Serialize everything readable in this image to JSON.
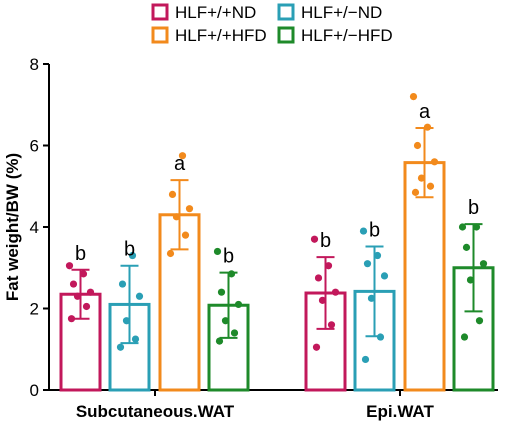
{
  "chart_data": {
    "type": "bar",
    "title": "",
    "xlabel": "",
    "ylabel": "Fat weight/BW (%)",
    "ylim": [
      0,
      8
    ],
    "yticks": [
      "0",
      "2",
      "4",
      "6",
      "8"
    ],
    "categories": [
      "Subcutaneous.WAT",
      "Epi.WAT"
    ],
    "legend_position": "top",
    "error_bars": "SD",
    "series": [
      {
        "name": "HLF+/+ND",
        "color": "#c2185b",
        "values": [
          2.35,
          2.38
        ],
        "errors": [
          0.6,
          0.88
        ],
        "letters": [
          "b",
          "b"
        ],
        "points": [
          [
            1.75,
            2.05,
            2.3,
            2.4,
            2.6,
            2.85,
            3.05
          ],
          [
            1.05,
            1.6,
            2.2,
            2.4,
            2.75,
            3.05,
            3.7
          ]
        ]
      },
      {
        "name": "HLF+/−ND",
        "color": "#2a9fb5",
        "values": [
          2.1,
          2.42
        ],
        "errors": [
          0.95,
          1.1
        ],
        "letters": [
          "b",
          "b"
        ],
        "points": [
          [
            1.05,
            1.25,
            1.7,
            2.3,
            2.6,
            3.3
          ],
          [
            0.75,
            1.3,
            2.25,
            2.8,
            3.1,
            3.3,
            3.9
          ]
        ]
      },
      {
        "name": "HLF+/+HFD",
        "color": "#f28a1c",
        "values": [
          4.3,
          5.58
        ],
        "errors": [
          0.85,
          0.85
        ],
        "letters": [
          "a",
          "a"
        ],
        "points": [
          [
            3.35,
            3.8,
            4.25,
            4.45,
            4.8,
            5.75
          ],
          [
            4.85,
            5.0,
            5.2,
            5.6,
            6.0,
            6.45,
            7.2
          ]
        ]
      },
      {
        "name": "HLF+/−HFD",
        "color": "#1e8a2a",
        "values": [
          2.08,
          3.0
        ],
        "errors": [
          0.8,
          1.07
        ],
        "letters": [
          "b",
          "b"
        ],
        "points": [
          [
            1.2,
            1.4,
            1.7,
            2.1,
            2.4,
            2.85,
            3.4
          ],
          [
            1.3,
            1.7,
            2.7,
            3.1,
            3.5,
            4.0,
            4.0
          ]
        ]
      }
    ]
  }
}
